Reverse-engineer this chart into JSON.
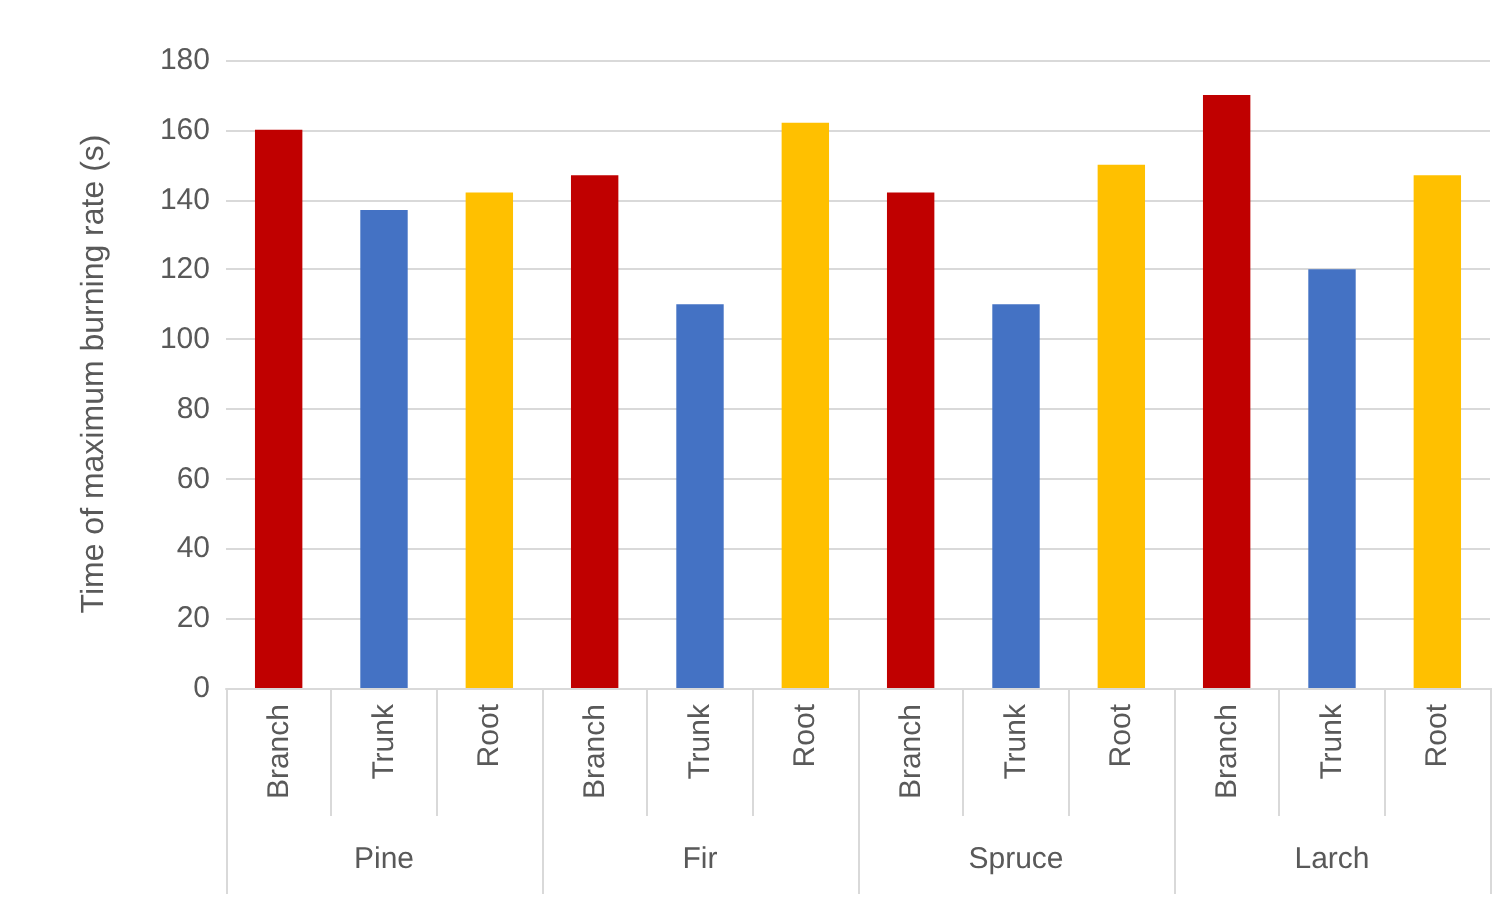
{
  "chart_data": {
    "type": "bar",
    "ylabel": "Time of maximum burning rate (s)",
    "categories": [
      "Pine",
      "Fir",
      "Spruce",
      "Larch"
    ],
    "series": [
      {
        "name": "Branch",
        "color": "#c00000",
        "values": [
          160,
          147,
          142,
          170
        ]
      },
      {
        "name": "Trunk",
        "color": "#4472c4",
        "values": [
          137,
          110,
          110,
          120
        ]
      },
      {
        "name": "Root",
        "color": "#ffc000",
        "values": [
          142,
          162,
          150,
          147
        ]
      }
    ],
    "ylim": [
      0,
      180
    ],
    "yticks": [
      0,
      20,
      40,
      60,
      80,
      100,
      120,
      140,
      160,
      180
    ],
    "grid": "y",
    "legend": false
  }
}
